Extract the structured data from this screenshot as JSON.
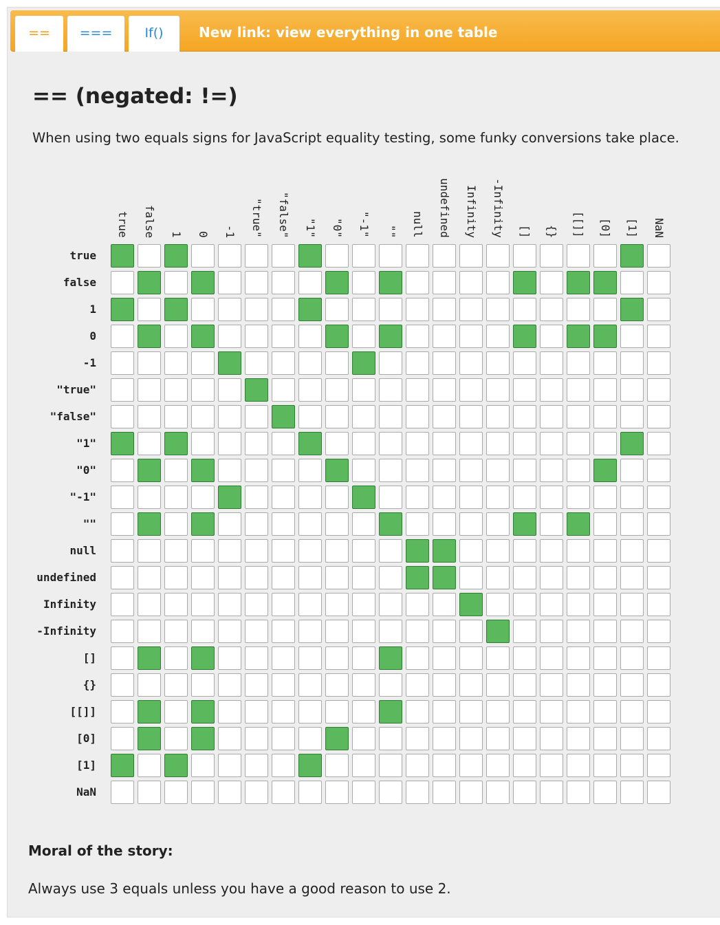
{
  "tabs": [
    "==",
    "===",
    "If()"
  ],
  "link": "New link: view everything in one table",
  "heading": "== (negated: !=)",
  "description": "When using two equals signs for JavaScript equality testing, some funky conversions take place.",
  "table": {
    "labels": [
      "true",
      "false",
      "1",
      "0",
      "-1",
      "\"true\"",
      "\"false\"",
      "\"1\"",
      "\"0\"",
      "\"-1\"",
      "\"\"",
      "null",
      "undefined",
      "Infinity",
      "-Infinity",
      "[]",
      "{}",
      "[[]]",
      "[0]",
      "[1]",
      "NaN"
    ],
    "equal": [
      [
        1,
        0,
        1,
        0,
        0,
        0,
        0,
        1,
        0,
        0,
        0,
        0,
        0,
        0,
        0,
        0,
        0,
        0,
        0,
        1,
        0
      ],
      [
        0,
        1,
        0,
        1,
        0,
        0,
        0,
        0,
        1,
        0,
        1,
        0,
        0,
        0,
        0,
        1,
        0,
        1,
        1,
        0,
        0
      ],
      [
        1,
        0,
        1,
        0,
        0,
        0,
        0,
        1,
        0,
        0,
        0,
        0,
        0,
        0,
        0,
        0,
        0,
        0,
        0,
        1,
        0
      ],
      [
        0,
        1,
        0,
        1,
        0,
        0,
        0,
        0,
        1,
        0,
        1,
        0,
        0,
        0,
        0,
        1,
        0,
        1,
        1,
        0,
        0
      ],
      [
        0,
        0,
        0,
        0,
        1,
        0,
        0,
        0,
        0,
        1,
        0,
        0,
        0,
        0,
        0,
        0,
        0,
        0,
        0,
        0,
        0
      ],
      [
        0,
        0,
        0,
        0,
        0,
        1,
        0,
        0,
        0,
        0,
        0,
        0,
        0,
        0,
        0,
        0,
        0,
        0,
        0,
        0,
        0
      ],
      [
        0,
        0,
        0,
        0,
        0,
        0,
        1,
        0,
        0,
        0,
        0,
        0,
        0,
        0,
        0,
        0,
        0,
        0,
        0,
        0,
        0
      ],
      [
        1,
        0,
        1,
        0,
        0,
        0,
        0,
        1,
        0,
        0,
        0,
        0,
        0,
        0,
        0,
        0,
        0,
        0,
        0,
        1,
        0
      ],
      [
        0,
        1,
        0,
        1,
        0,
        0,
        0,
        0,
        1,
        0,
        0,
        0,
        0,
        0,
        0,
        0,
        0,
        0,
        1,
        0,
        0
      ],
      [
        0,
        0,
        0,
        0,
        1,
        0,
        0,
        0,
        0,
        1,
        0,
        0,
        0,
        0,
        0,
        0,
        0,
        0,
        0,
        0,
        0
      ],
      [
        0,
        1,
        0,
        1,
        0,
        0,
        0,
        0,
        0,
        0,
        1,
        0,
        0,
        0,
        0,
        1,
        0,
        1,
        0,
        0,
        0
      ],
      [
        0,
        0,
        0,
        0,
        0,
        0,
        0,
        0,
        0,
        0,
        0,
        1,
        1,
        0,
        0,
        0,
        0,
        0,
        0,
        0,
        0
      ],
      [
        0,
        0,
        0,
        0,
        0,
        0,
        0,
        0,
        0,
        0,
        0,
        1,
        1,
        0,
        0,
        0,
        0,
        0,
        0,
        0,
        0
      ],
      [
        0,
        0,
        0,
        0,
        0,
        0,
        0,
        0,
        0,
        0,
        0,
        0,
        0,
        1,
        0,
        0,
        0,
        0,
        0,
        0,
        0
      ],
      [
        0,
        0,
        0,
        0,
        0,
        0,
        0,
        0,
        0,
        0,
        0,
        0,
        0,
        0,
        1,
        0,
        0,
        0,
        0,
        0,
        0
      ],
      [
        0,
        1,
        0,
        1,
        0,
        0,
        0,
        0,
        0,
        0,
        1,
        0,
        0,
        0,
        0,
        0,
        0,
        0,
        0,
        0,
        0
      ],
      [
        0,
        0,
        0,
        0,
        0,
        0,
        0,
        0,
        0,
        0,
        0,
        0,
        0,
        0,
        0,
        0,
        0,
        0,
        0,
        0,
        0
      ],
      [
        0,
        1,
        0,
        1,
        0,
        0,
        0,
        0,
        0,
        0,
        1,
        0,
        0,
        0,
        0,
        0,
        0,
        0,
        0,
        0,
        0
      ],
      [
        0,
        1,
        0,
        1,
        0,
        0,
        0,
        0,
        1,
        0,
        0,
        0,
        0,
        0,
        0,
        0,
        0,
        0,
        0,
        0,
        0
      ],
      [
        1,
        0,
        1,
        0,
        0,
        0,
        0,
        1,
        0,
        0,
        0,
        0,
        0,
        0,
        0,
        0,
        0,
        0,
        0,
        0,
        0
      ],
      [
        0,
        0,
        0,
        0,
        0,
        0,
        0,
        0,
        0,
        0,
        0,
        0,
        0,
        0,
        0,
        0,
        0,
        0,
        0,
        0,
        0
      ]
    ]
  },
  "moral": {
    "title": "Moral of the story:",
    "text": "Always use 3 equals unless you have a good reason to use 2."
  }
}
